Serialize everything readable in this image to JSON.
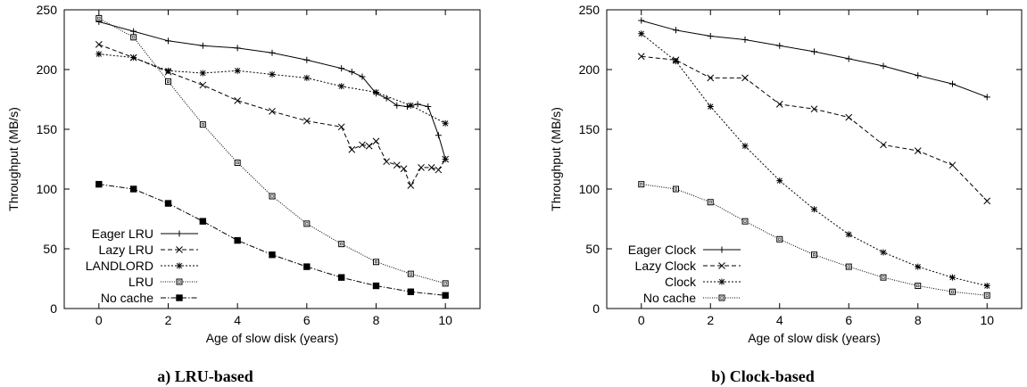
{
  "chart_data": [
    {
      "type": "line",
      "caption": "a) LRU-based",
      "xlabel": "Age of slow disk (years)",
      "ylabel": "Throughput (MB/s)",
      "xlim": [
        -1,
        11
      ],
      "ylim": [
        0,
        250
      ],
      "xticks": [
        0,
        2,
        4,
        6,
        8,
        10
      ],
      "yticks": [
        0,
        50,
        100,
        150,
        200,
        250
      ],
      "grid": false,
      "legend_position": "bottom-left",
      "series": [
        {
          "name": "Eager LRU",
          "style": "solid",
          "marker": "plus",
          "x": [
            0,
            1,
            2,
            3,
            4,
            5,
            6,
            7,
            7.3,
            7.6,
            8,
            8.3,
            8.6,
            8.9,
            9.2,
            9.5,
            9.8,
            10
          ],
          "y": [
            240,
            232,
            224,
            220,
            218,
            214,
            208,
            201,
            198,
            194,
            180,
            176,
            170,
            169,
            171,
            169,
            145,
            125
          ]
        },
        {
          "name": "Lazy LRU",
          "style": "dashed",
          "marker": "x",
          "x": [
            0,
            1,
            2,
            3,
            4,
            5,
            6,
            7,
            7.3,
            7.6,
            7.8,
            8,
            8.3,
            8.6,
            8.8,
            9,
            9.3,
            9.6,
            9.8,
            10
          ],
          "y": [
            221,
            210,
            198,
            187,
            174,
            165,
            157,
            152,
            133,
            137,
            136,
            140,
            123,
            120,
            117,
            103,
            118,
            118,
            116,
            125
          ]
        },
        {
          "name": "LANDLORD",
          "style": "dotted",
          "marker": "asterisk",
          "x": [
            0,
            1,
            2,
            3,
            4,
            5,
            6,
            7,
            8,
            9,
            10
          ],
          "y": [
            213,
            210,
            199,
            197,
            199,
            196,
            193,
            186,
            181,
            170,
            155
          ]
        },
        {
          "name": "LRU",
          "style": "dense-dotted",
          "marker": "box",
          "x": [
            0,
            1,
            2,
            3,
            4,
            5,
            6,
            7,
            8,
            9,
            10
          ],
          "y": [
            243,
            227,
            190,
            154,
            122,
            94,
            71,
            54,
            39,
            29,
            21
          ]
        },
        {
          "name": "No cache",
          "style": "dashdot",
          "marker": "filled-box",
          "x": [
            0,
            1,
            2,
            3,
            4,
            5,
            6,
            7,
            8,
            9,
            10
          ],
          "y": [
            104,
            100,
            88,
            73,
            57,
            45,
            35,
            26,
            19,
            14,
            11
          ]
        }
      ]
    },
    {
      "type": "line",
      "caption": "b) Clock-based",
      "xlabel": "Age of slow disk (years)",
      "ylabel": "Throughput (MB/s)",
      "xlim": [
        -1,
        11
      ],
      "ylim": [
        0,
        250
      ],
      "xticks": [
        0,
        2,
        4,
        6,
        8,
        10
      ],
      "yticks": [
        0,
        50,
        100,
        150,
        200,
        250
      ],
      "grid": false,
      "legend_position": "bottom-left",
      "series": [
        {
          "name": "Eager Clock",
          "style": "solid",
          "marker": "plus",
          "x": [
            0,
            1,
            2,
            3,
            4,
            5,
            6,
            7,
            8,
            9,
            10
          ],
          "y": [
            241,
            233,
            228,
            225,
            220,
            215,
            209,
            203,
            195,
            188,
            177
          ]
        },
        {
          "name": "Lazy Clock",
          "style": "dashed",
          "marker": "x",
          "x": [
            0,
            1,
            2,
            3,
            4,
            5,
            6,
            7,
            8,
            9,
            10
          ],
          "y": [
            211,
            208,
            193,
            193,
            171,
            167,
            160,
            137,
            132,
            120,
            90
          ]
        },
        {
          "name": "Clock",
          "style": "dotted",
          "marker": "asterisk",
          "x": [
            0,
            1,
            2,
            3,
            4,
            5,
            6,
            7,
            8,
            9,
            10
          ],
          "y": [
            230,
            207,
            169,
            136,
            107,
            83,
            62,
            47,
            35,
            26,
            19
          ]
        },
        {
          "name": "No cache",
          "style": "dense-dotted",
          "marker": "box",
          "x": [
            0,
            1,
            2,
            3,
            4,
            5,
            6,
            7,
            8,
            9,
            10
          ],
          "y": [
            104,
            100,
            89,
            73,
            58,
            45,
            35,
            26,
            19,
            14,
            11
          ]
        }
      ]
    }
  ]
}
